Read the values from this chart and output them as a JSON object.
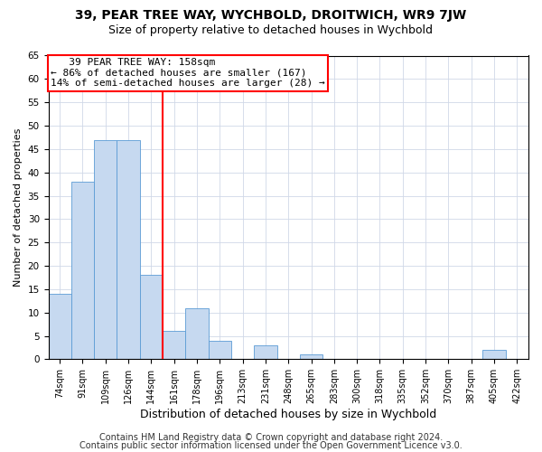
{
  "title": "39, PEAR TREE WAY, WYCHBOLD, DROITWICH, WR9 7JW",
  "subtitle": "Size of property relative to detached houses in Wychbold",
  "xlabel": "Distribution of detached houses by size in Wychbold",
  "ylabel": "Number of detached properties",
  "bar_color": "#c6d9f0",
  "bar_edge_color": "#5b9bd5",
  "categories": [
    "74sqm",
    "91sqm",
    "109sqm",
    "126sqm",
    "144sqm",
    "161sqm",
    "178sqm",
    "196sqm",
    "213sqm",
    "231sqm",
    "248sqm",
    "265sqm",
    "283sqm",
    "300sqm",
    "318sqm",
    "335sqm",
    "352sqm",
    "370sqm",
    "387sqm",
    "405sqm",
    "422sqm"
  ],
  "values": [
    14,
    38,
    47,
    47,
    18,
    6,
    11,
    4,
    0,
    3,
    0,
    1,
    0,
    0,
    0,
    0,
    0,
    0,
    0,
    2,
    0
  ],
  "ylim": [
    0,
    65
  ],
  "yticks": [
    0,
    5,
    10,
    15,
    20,
    25,
    30,
    35,
    40,
    45,
    50,
    55,
    60,
    65
  ],
  "red_line_index": 5,
  "annotation_line1": "   39 PEAR TREE WAY: 158sqm",
  "annotation_line2": "← 86% of detached houses are smaller (167)",
  "annotation_line3": "14% of semi-detached houses are larger (28) →",
  "annotation_box_color": "white",
  "annotation_box_edge_color": "red",
  "red_line_color": "red",
  "grid_color": "#d0d8e8",
  "background_color": "white",
  "footer_line1": "Contains HM Land Registry data © Crown copyright and database right 2024.",
  "footer_line2": "Contains public sector information licensed under the Open Government Licence v3.0.",
  "title_fontsize": 10,
  "subtitle_fontsize": 9,
  "annotation_fontsize": 8,
  "footer_fontsize": 7,
  "ylabel_fontsize": 8,
  "xlabel_fontsize": 9
}
